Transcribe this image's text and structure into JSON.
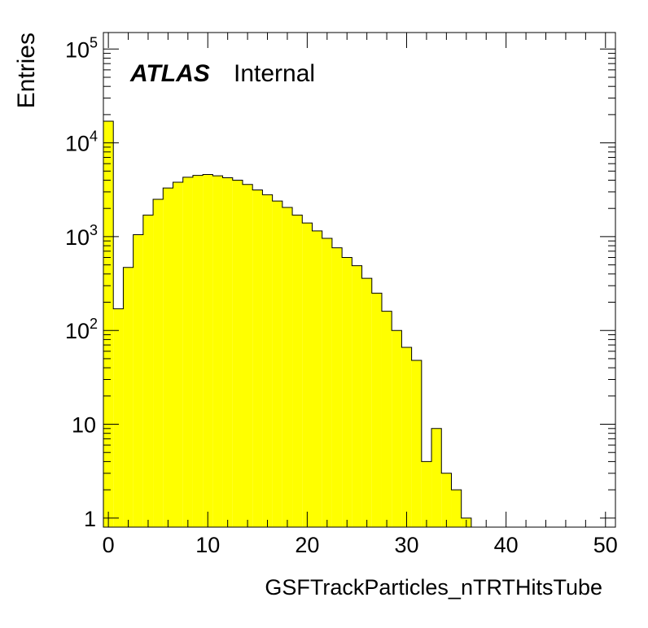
{
  "chart_data": {
    "type": "bar",
    "style": "histogram",
    "xlabel": "GSFTrackParticles_nTRTHitsTube",
    "ylabel": "Entries",
    "label_bold": "ATLAS",
    "label_plain": "Internal",
    "xlim": [
      -0.5,
      51
    ],
    "ylim": [
      0.8,
      150000
    ],
    "yscale": "log",
    "fill_color": "#ffff00",
    "line_color": "#000000",
    "bin_width": 1,
    "x_ticks": [
      "0",
      "10",
      "20",
      "30",
      "40",
      "50"
    ],
    "x_tick_values": [
      0,
      10,
      20,
      30,
      40,
      50
    ],
    "y_ticks": [
      {
        "base": "10",
        "exp": "5",
        "value": 100000
      },
      {
        "base": "10",
        "exp": "4",
        "value": 10000
      },
      {
        "base": "10",
        "exp": "3",
        "value": 1000
      },
      {
        "base": "10",
        "exp": "2",
        "value": 100
      },
      {
        "base": "10",
        "exp": "",
        "value": 10
      },
      {
        "base": "1",
        "exp": "",
        "value": 1
      }
    ],
    "bin_low_edges": [
      -0.5,
      0.5,
      1.5,
      2.5,
      3.5,
      4.5,
      5.5,
      6.5,
      7.5,
      8.5,
      9.5,
      10.5,
      11.5,
      12.5,
      13.5,
      14.5,
      15.5,
      16.5,
      17.5,
      18.5,
      19.5,
      20.5,
      21.5,
      22.5,
      23.5,
      24.5,
      25.5,
      26.5,
      27.5,
      28.5,
      29.5,
      30.5,
      31.5,
      32.5,
      33.5,
      34.5,
      35.5
    ],
    "values": [
      17000,
      170,
      470,
      1050,
      1700,
      2500,
      3300,
      3800,
      4300,
      4500,
      4600,
      4450,
      4250,
      4000,
      3600,
      3150,
      2800,
      2400,
      2050,
      1700,
      1400,
      1150,
      960,
      760,
      600,
      490,
      360,
      250,
      160,
      100,
      66,
      48,
      4,
      9,
      3,
      2,
      1
    ]
  }
}
